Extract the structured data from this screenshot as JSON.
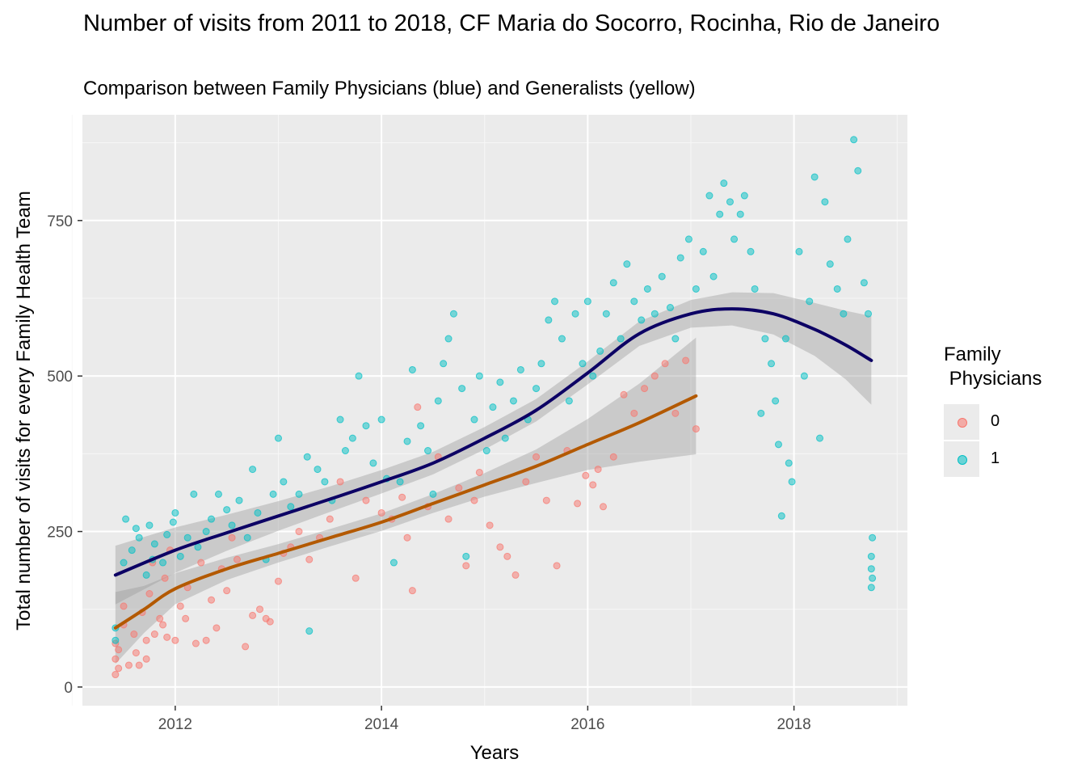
{
  "chart_data": {
    "type": "scatter",
    "title": "Number of visits from 2011 to 2018, CF Maria do Socorro, Rocinha, Rio de Janeiro",
    "subtitle": "Comparison between Family Physicians (blue) and Generalists (yellow)",
    "xlabel": "Years",
    "ylabel": "Total number of visits for every Family Health Team",
    "x_ticks": [
      2012,
      2014,
      2016,
      2018
    ],
    "y_ticks": [
      0,
      250,
      500,
      750
    ],
    "xlim": [
      2011.1,
      2019.1
    ],
    "ylim": [
      -30,
      920
    ],
    "grid": true,
    "legend": {
      "title": "Family\n Physicians",
      "position": "right",
      "items": [
        {
          "label": "0",
          "color": "#F8766D"
        },
        {
          "label": "1",
          "color": "#00BFC4"
        }
      ]
    },
    "series": [
      {
        "label": "0",
        "color": "#F8766D",
        "points": [
          [
            2011.42,
            20
          ],
          [
            2011.42,
            45
          ],
          [
            2011.42,
            70
          ],
          [
            2011.45,
            30
          ],
          [
            2011.45,
            60
          ],
          [
            2011.5,
            100
          ],
          [
            2011.5,
            130
          ],
          [
            2011.55,
            35
          ],
          [
            2011.6,
            85
          ],
          [
            2011.62,
            55
          ],
          [
            2011.65,
            35
          ],
          [
            2011.68,
            120
          ],
          [
            2011.72,
            75
          ],
          [
            2011.72,
            45
          ],
          [
            2011.75,
            150
          ],
          [
            2011.78,
            200
          ],
          [
            2011.8,
            85
          ],
          [
            2011.85,
            110
          ],
          [
            2011.88,
            100
          ],
          [
            2011.9,
            175
          ],
          [
            2011.92,
            80
          ],
          [
            2011.95,
            220
          ],
          [
            2012.0,
            75
          ],
          [
            2012.05,
            130
          ],
          [
            2012.1,
            110
          ],
          [
            2012.12,
            160
          ],
          [
            2012.2,
            70
          ],
          [
            2012.25,
            200
          ],
          [
            2012.3,
            75
          ],
          [
            2012.35,
            140
          ],
          [
            2012.4,
            95
          ],
          [
            2012.45,
            190
          ],
          [
            2012.5,
            155
          ],
          [
            2012.55,
            240
          ],
          [
            2012.6,
            205
          ],
          [
            2012.68,
            65
          ],
          [
            2012.75,
            115
          ],
          [
            2012.82,
            125
          ],
          [
            2012.88,
            110
          ],
          [
            2012.92,
            105
          ],
          [
            2013.0,
            170
          ],
          [
            2013.05,
            215
          ],
          [
            2013.12,
            225
          ],
          [
            2013.2,
            250
          ],
          [
            2013.3,
            205
          ],
          [
            2013.4,
            240
          ],
          [
            2013.5,
            270
          ],
          [
            2013.6,
            330
          ],
          [
            2013.75,
            175
          ],
          [
            2013.85,
            300
          ],
          [
            2014.0,
            280
          ],
          [
            2014.1,
            270
          ],
          [
            2014.2,
            305
          ],
          [
            2014.25,
            240
          ],
          [
            2014.3,
            155
          ],
          [
            2014.35,
            450
          ],
          [
            2014.45,
            290
          ],
          [
            2014.55,
            370
          ],
          [
            2014.65,
            270
          ],
          [
            2014.75,
            320
          ],
          [
            2014.82,
            195
          ],
          [
            2014.9,
            300
          ],
          [
            2014.95,
            345
          ],
          [
            2015.05,
            260
          ],
          [
            2015.15,
            225
          ],
          [
            2015.22,
            210
          ],
          [
            2015.3,
            180
          ],
          [
            2015.4,
            330
          ],
          [
            2015.5,
            370
          ],
          [
            2015.6,
            300
          ],
          [
            2015.7,
            195
          ],
          [
            2015.8,
            380
          ],
          [
            2015.9,
            295
          ],
          [
            2015.98,
            340
          ],
          [
            2016.05,
            325
          ],
          [
            2016.1,
            350
          ],
          [
            2016.15,
            290
          ],
          [
            2016.25,
            370
          ],
          [
            2016.35,
            470
          ],
          [
            2016.45,
            440
          ],
          [
            2016.55,
            480
          ],
          [
            2016.65,
            500
          ],
          [
            2016.75,
            520
          ],
          [
            2016.85,
            440
          ],
          [
            2016.95,
            525
          ],
          [
            2017.05,
            415
          ]
        ]
      },
      {
        "label": "1",
        "color": "#00BFC4",
        "points": [
          [
            2011.42,
            75
          ],
          [
            2011.42,
            95
          ],
          [
            2011.5,
            200
          ],
          [
            2011.52,
            270
          ],
          [
            2011.58,
            220
          ],
          [
            2011.62,
            255
          ],
          [
            2011.65,
            240
          ],
          [
            2011.72,
            180
          ],
          [
            2011.75,
            260
          ],
          [
            2011.78,
            205
          ],
          [
            2011.8,
            230
          ],
          [
            2011.88,
            200
          ],
          [
            2011.92,
            245
          ],
          [
            2011.98,
            265
          ],
          [
            2012.0,
            280
          ],
          [
            2012.05,
            210
          ],
          [
            2012.12,
            240
          ],
          [
            2012.18,
            310
          ],
          [
            2012.22,
            225
          ],
          [
            2012.3,
            250
          ],
          [
            2012.35,
            270
          ],
          [
            2012.42,
            310
          ],
          [
            2012.5,
            285
          ],
          [
            2012.55,
            260
          ],
          [
            2012.62,
            300
          ],
          [
            2012.7,
            240
          ],
          [
            2012.75,
            350
          ],
          [
            2012.8,
            280
          ],
          [
            2012.88,
            205
          ],
          [
            2012.95,
            310
          ],
          [
            2013.0,
            400
          ],
          [
            2013.05,
            330
          ],
          [
            2013.12,
            290
          ],
          [
            2013.2,
            310
          ],
          [
            2013.28,
            370
          ],
          [
            2013.3,
            90
          ],
          [
            2013.38,
            350
          ],
          [
            2013.45,
            330
          ],
          [
            2013.52,
            300
          ],
          [
            2013.6,
            430
          ],
          [
            2013.65,
            380
          ],
          [
            2013.72,
            400
          ],
          [
            2013.78,
            500
          ],
          [
            2013.85,
            420
          ],
          [
            2013.92,
            360
          ],
          [
            2014.0,
            430
          ],
          [
            2014.05,
            335
          ],
          [
            2014.12,
            200
          ],
          [
            2014.18,
            330
          ],
          [
            2014.25,
            395
          ],
          [
            2014.3,
            510
          ],
          [
            2014.38,
            420
          ],
          [
            2014.45,
            380
          ],
          [
            2014.5,
            310
          ],
          [
            2014.55,
            460
          ],
          [
            2014.6,
            520
          ],
          [
            2014.65,
            560
          ],
          [
            2014.7,
            600
          ],
          [
            2014.78,
            480
          ],
          [
            2014.82,
            210
          ],
          [
            2014.9,
            430
          ],
          [
            2014.95,
            500
          ],
          [
            2015.02,
            380
          ],
          [
            2015.08,
            450
          ],
          [
            2015.15,
            490
          ],
          [
            2015.2,
            400
          ],
          [
            2015.28,
            460
          ],
          [
            2015.35,
            510
          ],
          [
            2015.42,
            430
          ],
          [
            2015.5,
            480
          ],
          [
            2015.55,
            520
          ],
          [
            2015.62,
            590
          ],
          [
            2015.68,
            620
          ],
          [
            2015.75,
            560
          ],
          [
            2015.82,
            460
          ],
          [
            2015.88,
            600
          ],
          [
            2015.95,
            520
          ],
          [
            2016.0,
            620
          ],
          [
            2016.05,
            500
          ],
          [
            2016.12,
            540
          ],
          [
            2016.18,
            600
          ],
          [
            2016.25,
            650
          ],
          [
            2016.32,
            560
          ],
          [
            2016.38,
            680
          ],
          [
            2016.45,
            620
          ],
          [
            2016.52,
            590
          ],
          [
            2016.58,
            640
          ],
          [
            2016.65,
            600
          ],
          [
            2016.72,
            660
          ],
          [
            2016.8,
            610
          ],
          [
            2016.85,
            560
          ],
          [
            2016.9,
            690
          ],
          [
            2016.98,
            720
          ],
          [
            2017.05,
            640
          ],
          [
            2017.12,
            700
          ],
          [
            2017.18,
            790
          ],
          [
            2017.22,
            660
          ],
          [
            2017.28,
            760
          ],
          [
            2017.32,
            810
          ],
          [
            2017.38,
            780
          ],
          [
            2017.42,
            720
          ],
          [
            2017.48,
            760
          ],
          [
            2017.52,
            790
          ],
          [
            2017.58,
            700
          ],
          [
            2017.62,
            640
          ],
          [
            2017.68,
            440
          ],
          [
            2017.72,
            560
          ],
          [
            2017.78,
            520
          ],
          [
            2017.82,
            460
          ],
          [
            2017.85,
            390
          ],
          [
            2017.88,
            275
          ],
          [
            2017.92,
            560
          ],
          [
            2017.95,
            360
          ],
          [
            2017.98,
            330
          ],
          [
            2018.05,
            700
          ],
          [
            2018.1,
            500
          ],
          [
            2018.15,
            620
          ],
          [
            2018.2,
            820
          ],
          [
            2018.25,
            400
          ],
          [
            2018.3,
            780
          ],
          [
            2018.35,
            680
          ],
          [
            2018.42,
            640
          ],
          [
            2018.48,
            600
          ],
          [
            2018.52,
            720
          ],
          [
            2018.58,
            880
          ],
          [
            2018.62,
            830
          ],
          [
            2018.68,
            650
          ],
          [
            2018.72,
            600
          ],
          [
            2018.75,
            210
          ],
          [
            2018.75,
            190
          ],
          [
            2018.75,
            160
          ],
          [
            2018.76,
            240
          ],
          [
            2018.76,
            175
          ]
        ]
      }
    ],
    "smooth_lines": [
      {
        "label": "1",
        "color": "#0c0064",
        "points": [
          [
            2011.42,
            180
          ],
          [
            2012.0,
            220
          ],
          [
            2012.5,
            248
          ],
          [
            2013.0,
            275
          ],
          [
            2013.5,
            302
          ],
          [
            2014.0,
            330
          ],
          [
            2014.5,
            360
          ],
          [
            2015.0,
            400
          ],
          [
            2015.5,
            445
          ],
          [
            2016.0,
            505
          ],
          [
            2016.5,
            568
          ],
          [
            2017.0,
            600
          ],
          [
            2017.4,
            608
          ],
          [
            2017.8,
            600
          ],
          [
            2018.2,
            575
          ],
          [
            2018.5,
            550
          ],
          [
            2018.75,
            525
          ]
        ]
      },
      {
        "label": "0",
        "color": "#b35900",
        "points": [
          [
            2011.42,
            95
          ],
          [
            2011.7,
            125
          ],
          [
            2012.0,
            158
          ],
          [
            2012.5,
            190
          ],
          [
            2013.0,
            215
          ],
          [
            2013.5,
            240
          ],
          [
            2014.0,
            265
          ],
          [
            2014.5,
            295
          ],
          [
            2015.0,
            325
          ],
          [
            2015.5,
            355
          ],
          [
            2016.0,
            390
          ],
          [
            2016.5,
            425
          ],
          [
            2017.05,
            468
          ]
        ]
      }
    ]
  }
}
